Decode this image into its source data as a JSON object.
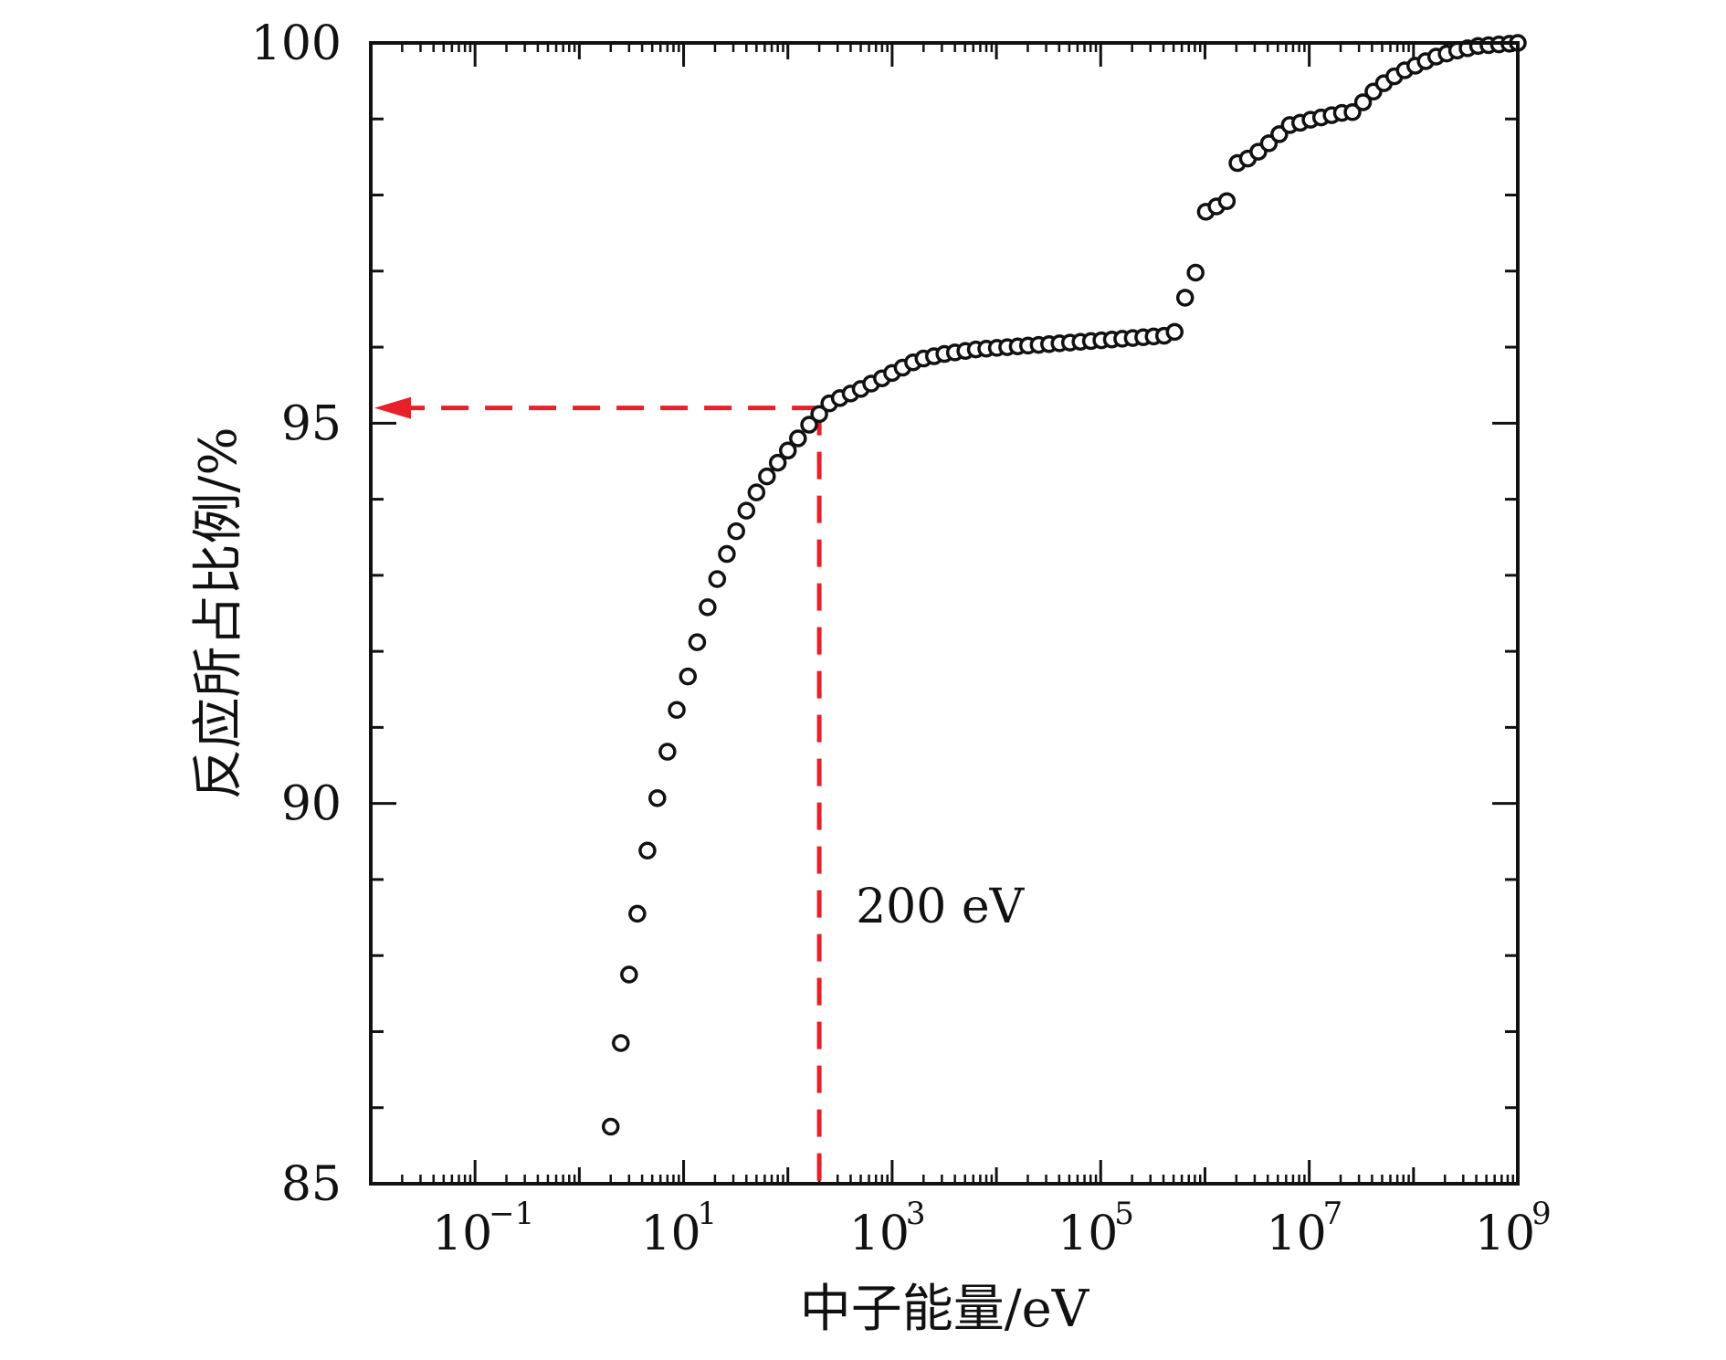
{
  "chart_data": {
    "type": "scatter",
    "xlabel": "中子能量/eV",
    "ylabel": "反应所占比例/%",
    "x_scale": "log",
    "xlim": [
      0.01,
      1000000000
    ],
    "ylim": [
      85,
      100
    ],
    "x_ticks": [
      {
        "base": "10",
        "exp": "−1",
        "value": 0.1
      },
      {
        "base": "10",
        "exp": "1",
        "value": 10
      },
      {
        "base": "10",
        "exp": "3",
        "value": 1000
      },
      {
        "base": "10",
        "exp": "5",
        "value": 100000
      },
      {
        "base": "10",
        "exp": "7",
        "value": 10000000
      },
      {
        "base": "10",
        "exp": "9",
        "value": 1000000000
      }
    ],
    "y_ticks": [
      85,
      90,
      95,
      100
    ],
    "grid": false,
    "marker": "open-circle",
    "marker_color": "#111111",
    "annotation": {
      "text": "200 eV",
      "x": 200,
      "y": 95.2,
      "color": "#e8202a",
      "style": "dashed"
    },
    "series": [
      {
        "x": [
          2,
          2.5,
          3,
          3.6,
          4.5,
          5.6,
          7,
          8.6,
          11,
          13.5,
          17,
          21,
          26,
          32,
          40,
          50,
          63,
          80,
          100,
          125,
          160,
          200,
          250,
          315,
          400,
          500,
          630,
          800,
          1000,
          1260,
          1590,
          2000,
          2520,
          3170,
          4000,
          5040,
          6350,
          8000,
          10100,
          12700,
          16000,
          20100,
          25400,
          32000,
          40300,
          50800,
          64000,
          80600,
          101600,
          128000,
          161000,
          203000,
          256000,
          322000,
          406000,
          512000,
          645000,
          813000,
          1020000,
          1290000,
          1620000,
          2050000,
          2580000,
          3250000,
          4100000,
          5160000,
          6500000,
          8190000,
          10300000,
          13000000,
          16400000,
          20600000,
          26000000,
          32800000,
          41300000,
          52000000,
          65500000,
          82500000,
          104000000,
          131000000,
          165000000,
          208000000,
          262000000,
          330000000,
          416000000,
          524000000,
          660000000,
          832000000,
          1000000000
        ],
        "y": [
          85.75,
          86.85,
          87.75,
          88.55,
          89.38,
          90.07,
          90.68,
          91.23,
          91.67,
          92.12,
          92.58,
          92.95,
          93.28,
          93.58,
          93.85,
          94.09,
          94.3,
          94.48,
          94.64,
          94.8,
          94.98,
          95.12,
          95.26,
          95.33,
          95.39,
          95.45,
          95.52,
          95.59,
          95.66,
          95.73,
          95.8,
          95.85,
          95.88,
          95.91,
          95.93,
          95.95,
          95.97,
          95.98,
          95.99,
          96.0,
          96.01,
          96.02,
          96.03,
          96.04,
          96.05,
          96.06,
          96.07,
          96.08,
          96.09,
          96.1,
          96.11,
          96.12,
          96.13,
          96.14,
          96.15,
          96.2,
          96.65,
          96.98,
          97.78,
          97.85,
          97.92,
          98.42,
          98.48,
          98.57,
          98.68,
          98.8,
          98.92,
          98.95,
          98.99,
          99.02,
          99.05,
          99.08,
          99.09,
          99.22,
          99.36,
          99.47,
          99.56,
          99.64,
          99.7,
          99.76,
          99.82,
          99.86,
          99.9,
          99.93,
          99.96,
          99.97,
          99.98,
          99.99,
          100.0
        ]
      }
    ]
  }
}
